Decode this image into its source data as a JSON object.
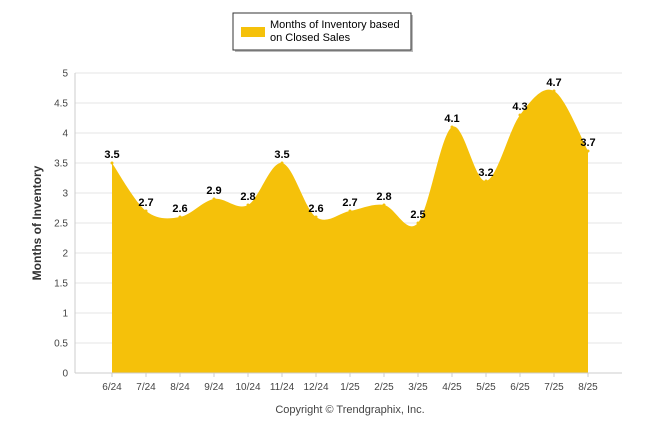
{
  "legend": {
    "line1": "Months of Inventory based",
    "line2": "on Closed Sales"
  },
  "footer": {
    "copyright": "Copyright © Trendgraphix, Inc."
  },
  "chart_data": {
    "type": "area",
    "title": "",
    "xlabel": "",
    "ylabel": "Months of Inventory",
    "categories": [
      "6/24",
      "7/24",
      "8/24",
      "9/24",
      "10/24",
      "11/24",
      "12/24",
      "1/25",
      "2/25",
      "3/25",
      "4/25",
      "5/25",
      "6/25",
      "7/25",
      "8/25"
    ],
    "series": [
      {
        "name": "Months of Inventory based on Closed Sales",
        "values": [
          3.5,
          2.7,
          2.6,
          2.9,
          2.8,
          3.5,
          2.6,
          2.7,
          2.8,
          2.5,
          4.1,
          3.2,
          4.3,
          4.7,
          3.7
        ],
        "labels": [
          "3.5",
          "2.7",
          "2.6",
          "2.9",
          "2.8",
          "3.5",
          "2.6",
          "2.7",
          "2.8",
          "2.5",
          "4.1",
          "3.2",
          "4.3",
          "4.7",
          "3.7"
        ],
        "color": "#F5C10A"
      }
    ],
    "ylim": [
      0,
      5
    ],
    "yticks": [
      "0",
      "0.5",
      "1",
      "1.5",
      "2",
      "2.5",
      "3",
      "3.5",
      "4",
      "4.5",
      "5"
    ],
    "grid": true,
    "legend_position": "top-center",
    "colors": {
      "fill": "#F5C10A",
      "grid": "#E6E6E6",
      "axis": "#CCCCCC"
    }
  }
}
